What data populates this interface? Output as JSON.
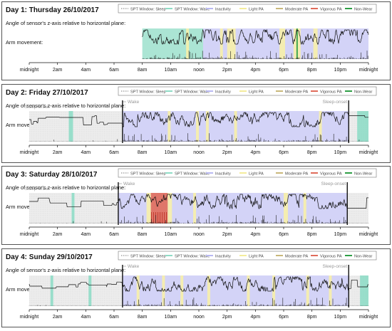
{
  "legend": {
    "items": [
      {
        "label": "SPT Window: Sleep",
        "color": "#bbbbbb",
        "style": "dotted"
      },
      {
        "label": "SPT Window: Wake",
        "color": "#8fdcc6",
        "style": "solid"
      },
      {
        "label": "Inactivity",
        "color": "#b9b9f2",
        "style": "solid"
      },
      {
        "label": "Light PA",
        "color": "#f4ec9c",
        "style": "solid"
      },
      {
        "label": "Moderate PA",
        "color": "#c9b87a",
        "style": "solid"
      },
      {
        "label": "Vigorous PA",
        "color": "#e06b5a",
        "style": "solid"
      },
      {
        "label": "Non-Wear",
        "color": "#2e9e45",
        "style": "solid"
      }
    ]
  },
  "labels": {
    "angle": "Angle of sensor's z-axis relative to horizontal plane:",
    "arm": "Arm movement:",
    "wake": "Wake",
    "sleep_onset": "Sleep-onset"
  },
  "colors": {
    "sleep": "#bbbbbb",
    "spt_wake": "#8fdcc6",
    "inactivity": "#c4c4f4",
    "light": "#f7f0a8",
    "moderate": "#c9b87a",
    "vigorous": "#e06b5a",
    "nonwear": "#2e9e45",
    "trace": "#111111",
    "wake_marker": "#555555",
    "border": "#555555"
  },
  "chart_data": [
    {
      "type": "timeline",
      "title": "Day 1: Thursday 26/10/2017",
      "x_ticks": [
        "midnight",
        "2am",
        "4am",
        "6am",
        "8am",
        "10am",
        "noon",
        "2pm",
        "4pm",
        "6pm",
        "8pm",
        "10pm",
        "midnight"
      ],
      "recording_start_hour": 8.0,
      "wake_hour": null,
      "sleep_onset_hour": null,
      "segments": [
        {
          "class": "spt_wake",
          "start": 8.0,
          "end": 12.3
        },
        {
          "class": "inactivity",
          "start": 12.3,
          "end": 24.0
        }
      ],
      "pa_bouts": [
        {
          "class": "light",
          "start": 11.1,
          "end": 11.3
        },
        {
          "class": "light",
          "start": 13.5,
          "end": 13.7
        },
        {
          "class": "light",
          "start": 14.0,
          "end": 14.6
        },
        {
          "class": "light",
          "start": 17.7,
          "end": 18.1
        },
        {
          "class": "light",
          "start": 18.7,
          "end": 19.2
        },
        {
          "class": "light",
          "start": 20.1,
          "end": 20.4
        },
        {
          "class": "nonwear",
          "start": 18.9,
          "end": 19.0
        }
      ],
      "mean_angle_pattern": "lying then active"
    },
    {
      "type": "timeline",
      "title": "Day 2: Friday 27/10/2017",
      "x_ticks": [
        "midnight",
        "2am",
        "4am",
        "6am",
        "8am",
        "10am",
        "noon",
        "2pm",
        "4pm",
        "6pm",
        "8pm",
        "10pm",
        "midnight"
      ],
      "recording_start_hour": 0.0,
      "wake_hour": 6.6,
      "sleep_onset_hour": 22.6,
      "segments": [
        {
          "class": "sleep",
          "start": 0.0,
          "end": 6.6
        },
        {
          "class": "inactivity",
          "start": 6.6,
          "end": 22.6
        },
        {
          "class": "sleep",
          "start": 22.6,
          "end": 24.0
        }
      ],
      "pa_bouts": [
        {
          "class": "light",
          "start": 9.8,
          "end": 10.0
        },
        {
          "class": "light",
          "start": 11.8,
          "end": 12.0
        },
        {
          "class": "light",
          "start": 12.5,
          "end": 12.7
        },
        {
          "class": "light",
          "start": 14.5,
          "end": 14.7
        },
        {
          "class": "light",
          "start": 20.5,
          "end": 20.7
        },
        {
          "class": "spt_wake",
          "start": 2.8,
          "end": 3.1
        },
        {
          "class": "spt_wake",
          "start": 23.2,
          "end": 24.0
        }
      ],
      "mean_angle_pattern": "sleep then active"
    },
    {
      "type": "timeline",
      "title": "Day 3: Saturday 28/10/2017",
      "x_ticks": [
        "midnight",
        "2am",
        "4am",
        "6am",
        "8am",
        "10am",
        "noon",
        "2pm",
        "4pm",
        "6pm",
        "8pm",
        "10pm",
        "midnight"
      ],
      "recording_start_hour": 0.0,
      "wake_hour": 6.3,
      "sleep_onset_hour": 22.5,
      "segments": [
        {
          "class": "sleep",
          "start": 0.0,
          "end": 6.3
        },
        {
          "class": "inactivity",
          "start": 6.3,
          "end": 22.5
        },
        {
          "class": "sleep",
          "start": 22.5,
          "end": 24.0
        }
      ],
      "pa_bouts": [
        {
          "class": "vigorous",
          "start": 8.6,
          "end": 9.8
        },
        {
          "class": "light",
          "start": 8.3,
          "end": 8.6
        },
        {
          "class": "light",
          "start": 9.8,
          "end": 10.1
        },
        {
          "class": "light",
          "start": 11.6,
          "end": 11.8
        },
        {
          "class": "light",
          "start": 18.0,
          "end": 18.3
        },
        {
          "class": "light",
          "start": 19.4,
          "end": 19.6
        },
        {
          "class": "spt_wake",
          "start": 3.0,
          "end": 3.2
        }
      ],
      "mean_angle_pattern": "sleep then active"
    },
    {
      "type": "timeline",
      "title": "Day 4: Sunday 29/10/2017",
      "x_ticks": [
        "midnight",
        "2am",
        "4am",
        "6am",
        "8am",
        "10am",
        "noon",
        "2pm",
        "4pm",
        "6pm",
        "8pm",
        "10pm",
        "midnight"
      ],
      "recording_start_hour": 0.0,
      "wake_hour": 6.6,
      "sleep_onset_hour": 22.6,
      "segments": [
        {
          "class": "sleep",
          "start": 0.0,
          "end": 6.6
        },
        {
          "class": "inactivity",
          "start": 6.6,
          "end": 22.6
        },
        {
          "class": "sleep",
          "start": 22.6,
          "end": 24.0
        }
      ],
      "pa_bouts": [
        {
          "class": "light",
          "start": 7.6,
          "end": 7.8
        },
        {
          "class": "light",
          "start": 9.4,
          "end": 9.6
        },
        {
          "class": "light",
          "start": 10.7,
          "end": 10.9
        },
        {
          "class": "light",
          "start": 12.6,
          "end": 12.8
        },
        {
          "class": "light",
          "start": 15.4,
          "end": 15.6
        },
        {
          "class": "light",
          "start": 17.2,
          "end": 17.4
        },
        {
          "class": "light",
          "start": 19.6,
          "end": 19.8
        },
        {
          "class": "light",
          "start": 21.2,
          "end": 21.4
        },
        {
          "class": "spt_wake",
          "start": 1.5,
          "end": 1.7
        },
        {
          "class": "spt_wake",
          "start": 4.2,
          "end": 4.4
        },
        {
          "class": "spt_wake",
          "start": 23.4,
          "end": 24.0
        }
      ],
      "mean_angle_pattern": "sleep then active"
    }
  ]
}
